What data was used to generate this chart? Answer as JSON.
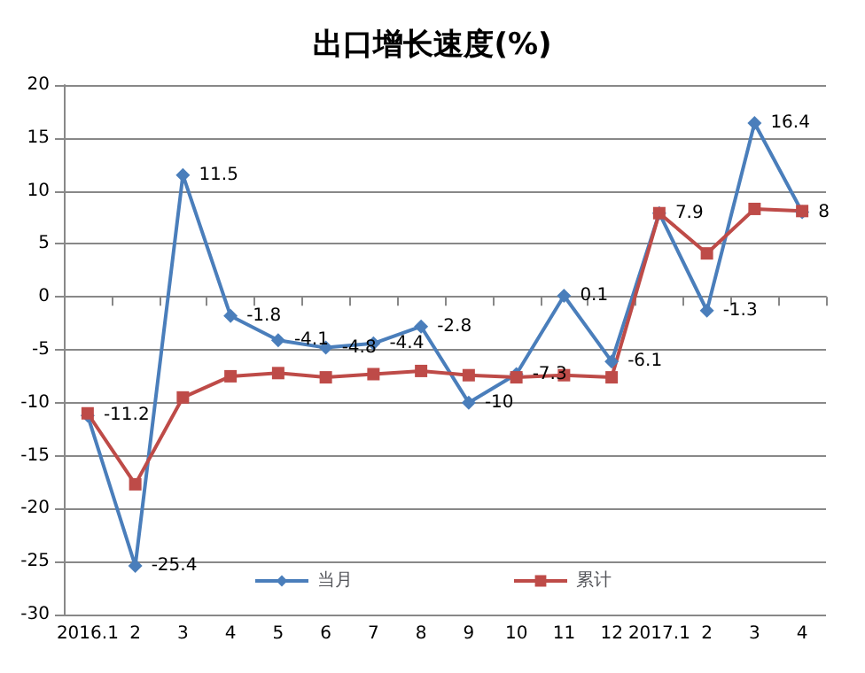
{
  "chart_data": {
    "type": "line",
    "title": "出口增长速度(%)",
    "categories": [
      "2016.1",
      "2",
      "3",
      "4",
      "5",
      "6",
      "7",
      "8",
      "9",
      "10",
      "11",
      "12",
      "2017.1",
      "2",
      "3",
      "4"
    ],
    "series": [
      {
        "name": "当月",
        "color": "#4a7ebb",
        "marker": "diamond",
        "values": [
          -11.2,
          -25.4,
          11.5,
          -1.8,
          -4.1,
          -4.8,
          -4.4,
          -2.8,
          -10,
          -7.3,
          0.1,
          -6.1,
          7.9,
          -1.3,
          16.4,
          8
        ],
        "value_labels": [
          "-11.2",
          "-25.4",
          "11.5",
          "-1.8",
          "-4.1",
          "-4.8",
          "-4.4",
          "-2.8",
          "-10",
          "-7.3",
          "0.1",
          "-6.1",
          "7.9",
          "-1.3",
          "16.4",
          "8"
        ]
      },
      {
        "name": "累计",
        "color": "#be4b48",
        "marker": "square",
        "values": [
          -11,
          -17.7,
          -9.5,
          -7.5,
          -7.2,
          -7.6,
          -7.3,
          -7,
          -7.4,
          -7.6,
          -7.4,
          -7.6,
          7.9,
          4.1,
          8.3,
          8.1
        ]
      }
    ],
    "ylim": [
      -30,
      20
    ],
    "yticks": [
      -30,
      -25,
      -20,
      -15,
      -10,
      -5,
      0,
      5,
      10,
      15,
      20
    ],
    "grid": "y",
    "legend": "bottom"
  }
}
